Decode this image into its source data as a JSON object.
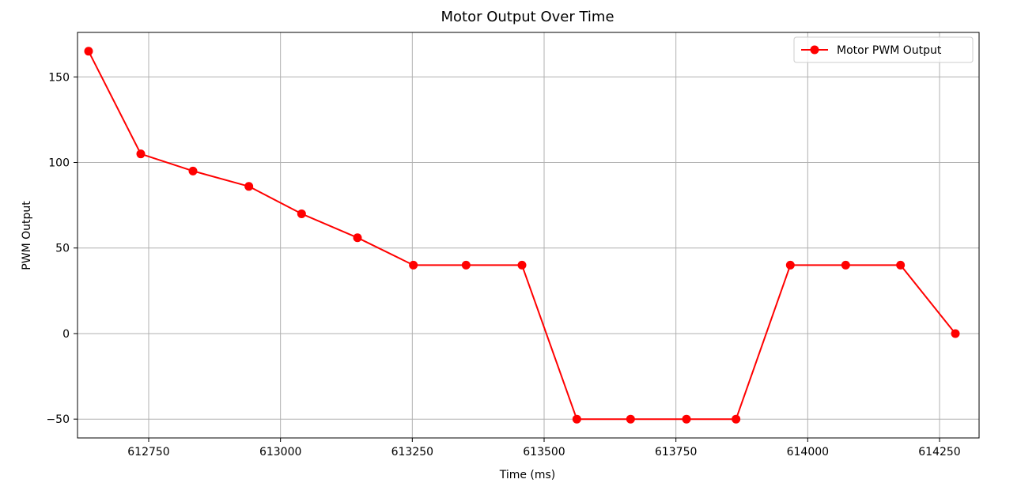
{
  "chart_data": {
    "type": "line",
    "title": "Motor Output Over Time",
    "xlabel": "Time (ms)",
    "ylabel": "PWM Output",
    "xlim": [
      612615,
      614325
    ],
    "ylim": [
      -61,
      176
    ],
    "xticks": [
      612750,
      613000,
      613250,
      613500,
      613750,
      614000,
      614250
    ],
    "yticks": [
      -50,
      0,
      50,
      100,
      150
    ],
    "grid": true,
    "legend_position": "top-right",
    "series": [
      {
        "name": "Motor PWM Output",
        "color": "#ff0000",
        "marker": "circle",
        "points": [
          {
            "x": 612636,
            "y": 165
          },
          {
            "x": 612735,
            "y": 105
          },
          {
            "x": 612834,
            "y": 95
          },
          {
            "x": 612940,
            "y": 86
          },
          {
            "x": 613040,
            "y": 70
          },
          {
            "x": 613146,
            "y": 56
          },
          {
            "x": 613252,
            "y": 40
          },
          {
            "x": 613352,
            "y": 40
          },
          {
            "x": 613458,
            "y": 40
          },
          {
            "x": 613562,
            "y": -50
          },
          {
            "x": 613664,
            "y": -50
          },
          {
            "x": 613770,
            "y": -50
          },
          {
            "x": 613864,
            "y": -50
          },
          {
            "x": 613967,
            "y": 40
          },
          {
            "x": 614072,
            "y": 40
          },
          {
            "x": 614176,
            "y": 40
          },
          {
            "x": 614280,
            "y": 0
          }
        ]
      }
    ]
  }
}
